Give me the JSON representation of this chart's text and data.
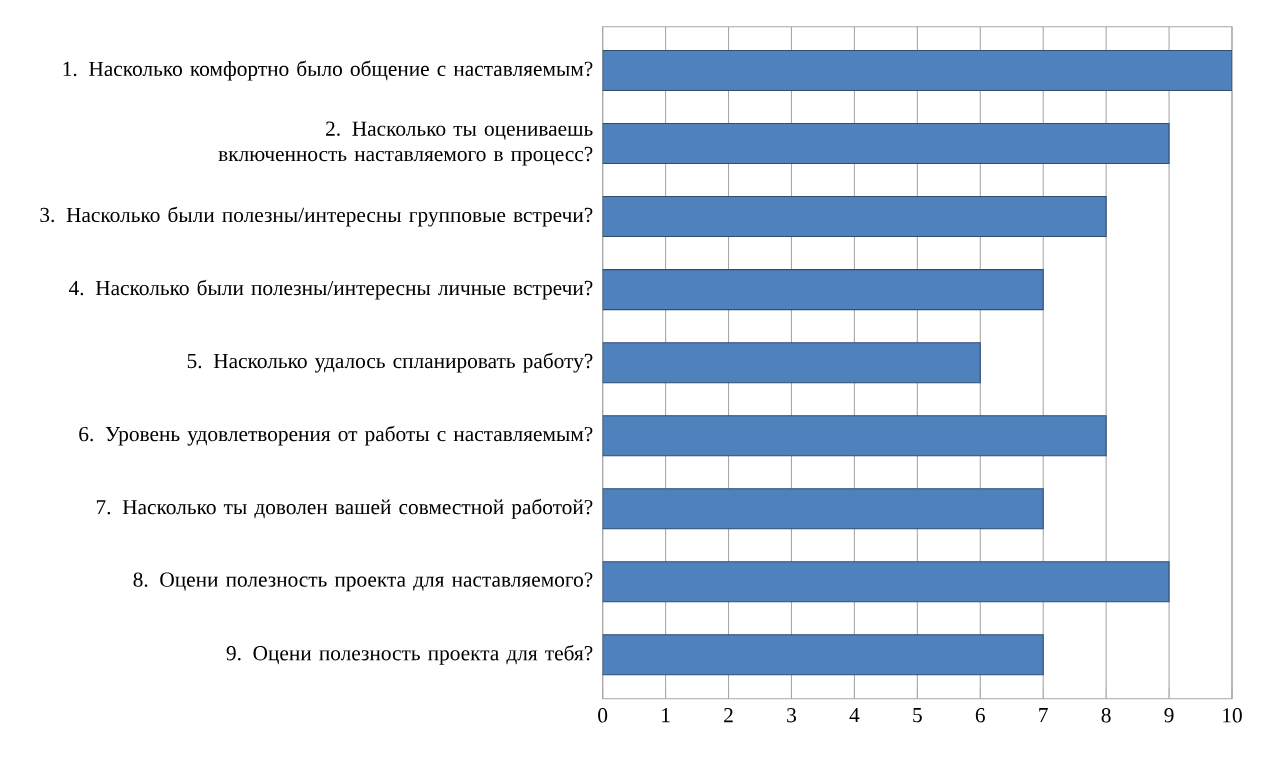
{
  "chart_data": {
    "type": "bar",
    "orientation": "horizontal",
    "categories": [
      "1. Насколько комфортно было общение с наставляемым?",
      "2. Насколько ты оцениваешь включенность наставляемого в процесс?",
      "3. Насколько были полезны/интересны групповые встречи?",
      "4. Насколько были полезны/интересны личные встречи?",
      "5. Насколько удалось спланировать работу?",
      "6. Уровень удовлетворения от работы с наставляемым?",
      "7. Насколько ты доволен вашей совместной работой?",
      "8. Оцени полезность проекта для наставляемого?",
      "9. Оцени полезность проекта для тебя?"
    ],
    "values": [
      10,
      9,
      8,
      7,
      6,
      8,
      7,
      9,
      7
    ],
    "color": "#4f81bd",
    "xlim": [
      0,
      10
    ],
    "xticks": [
      0,
      1,
      2,
      3,
      4,
      5,
      6,
      7,
      8,
      9,
      10
    ],
    "grid": "x"
  }
}
